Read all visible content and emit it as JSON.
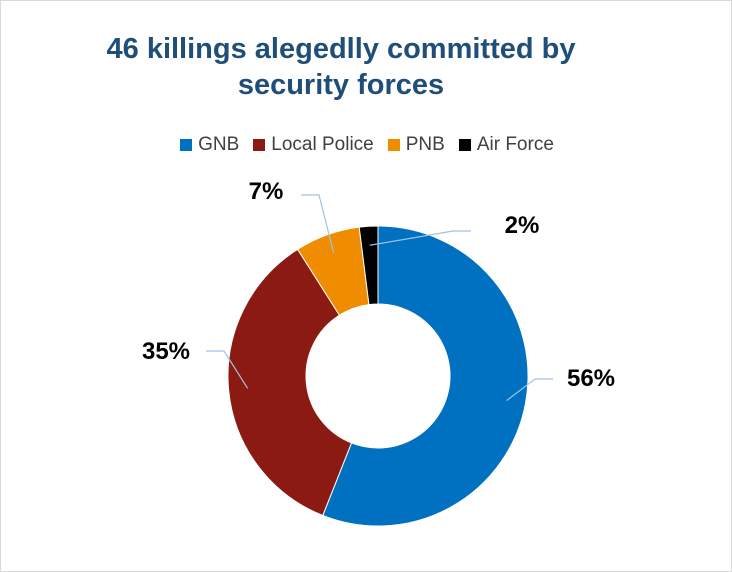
{
  "chart_data": {
    "type": "pie",
    "title": "46 killings alegedlly committed by security forces",
    "series": [
      {
        "name": "GNB",
        "value": 56,
        "label": "56%",
        "color": "#0070c0"
      },
      {
        "name": "Local Police",
        "value": 35,
        "label": "35%",
        "color": "#8b1a12"
      },
      {
        "name": "PNB",
        "value": 7,
        "label": "7%",
        "color": "#f08c00"
      },
      {
        "name": "Air Force",
        "value": 2,
        "label": "2%",
        "color": "#000000"
      }
    ],
    "legend_position": "top",
    "donut": true
  }
}
